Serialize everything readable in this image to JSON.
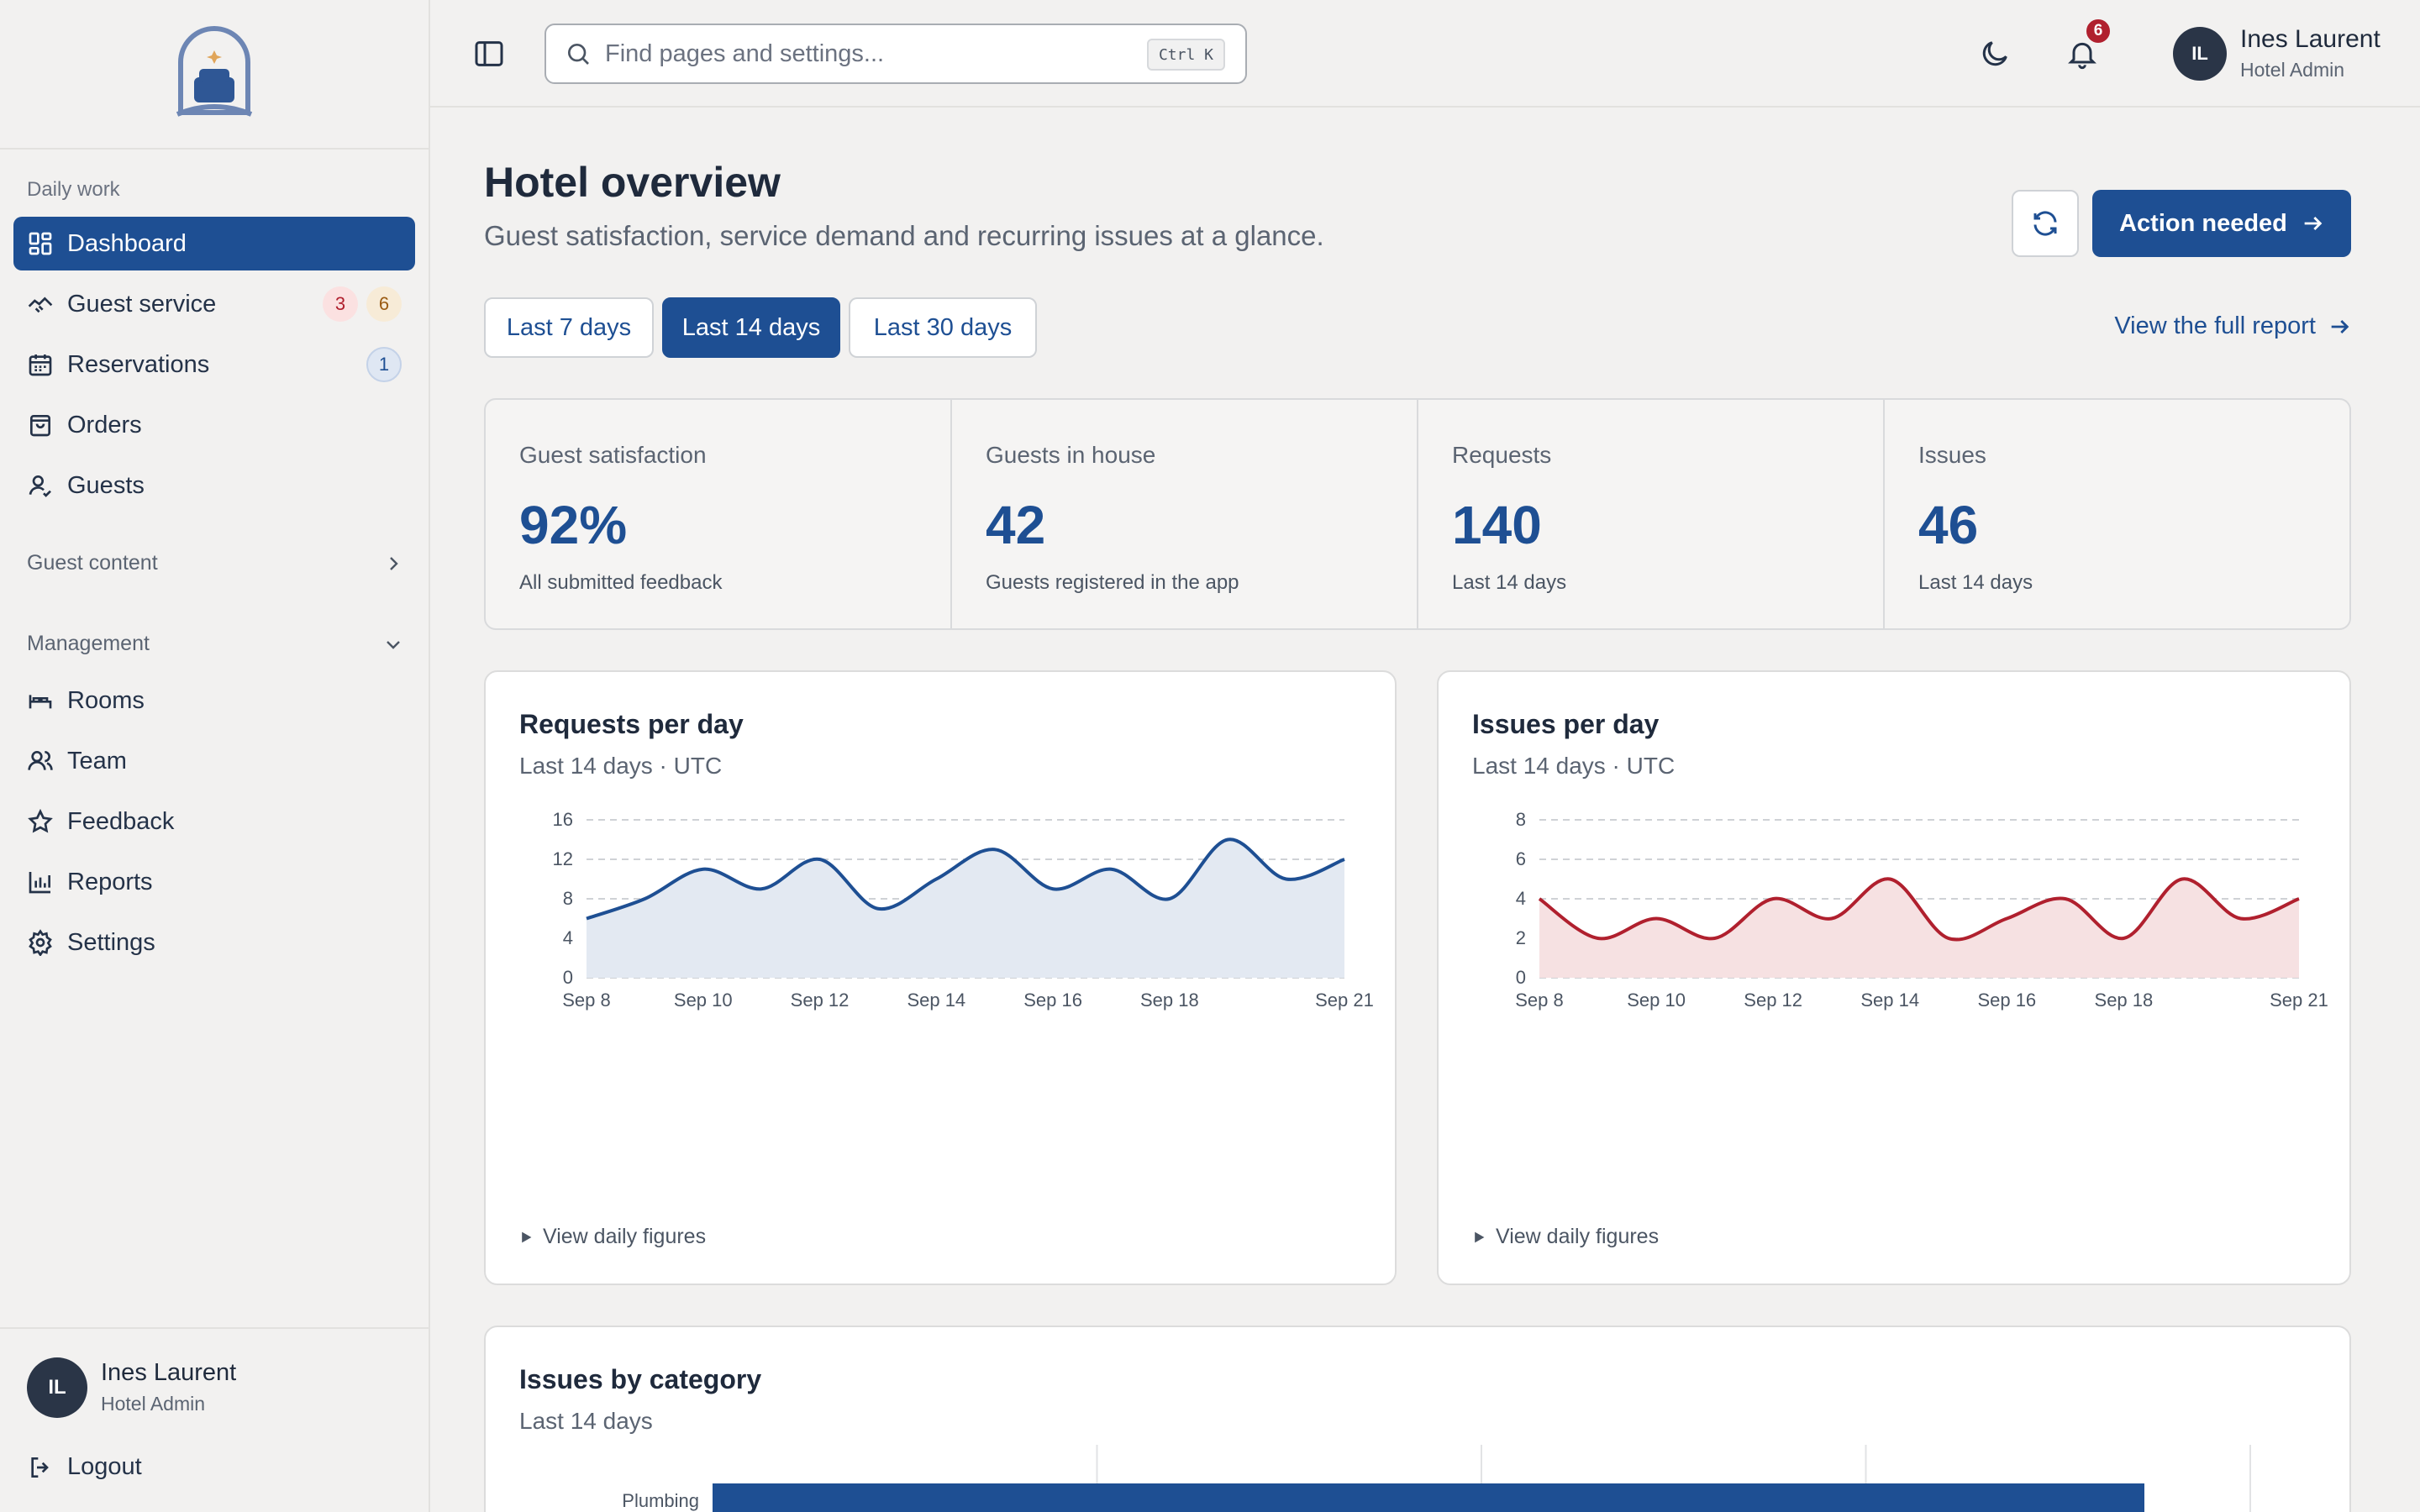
{
  "user": {
    "name": "Ines Laurent",
    "role": "Hotel Admin",
    "initials": "IL"
  },
  "search": {
    "placeholder": "Find pages and settings...",
    "shortcut": "Ctrl K"
  },
  "notifications": {
    "count": "6"
  },
  "sidebar": {
    "daily_label": "Daily work",
    "items": [
      {
        "label": "Dashboard"
      },
      {
        "label": "Guest service",
        "badge_red": "3",
        "badge_amber": "6"
      },
      {
        "label": "Reservations",
        "badge_blue": "1"
      },
      {
        "label": "Orders"
      },
      {
        "label": "Guests"
      }
    ],
    "guest_content_label": "Guest content",
    "management_label": "Management",
    "management_items": [
      {
        "label": "Rooms"
      },
      {
        "label": "Team"
      },
      {
        "label": "Feedback"
      },
      {
        "label": "Reports"
      },
      {
        "label": "Settings"
      }
    ],
    "logout_label": "Logout"
  },
  "page": {
    "title": "Hotel overview",
    "subtitle": "Guest satisfaction, service demand and recurring issues at a glance.",
    "action_label": "Action needed",
    "ranges": [
      "Last 7 days",
      "Last 14 days",
      "Last 30 days"
    ],
    "full_report_label": "View the full report"
  },
  "stats": [
    {
      "label": "Guest satisfaction",
      "value": "92%",
      "note": "All submitted feedback"
    },
    {
      "label": "Guests in house",
      "value": "42",
      "note": "Guests registered in the app"
    },
    {
      "label": "Requests",
      "value": "140",
      "note": "Last 14 days"
    },
    {
      "label": "Issues",
      "value": "46",
      "note": "Last 14 days"
    }
  ],
  "charts": {
    "requests": {
      "title": "Requests per day",
      "subtitle": "Last 14 days · UTC",
      "details_label": "View daily figures"
    },
    "issues": {
      "title": "Issues per day",
      "subtitle": "Last 14 days · UTC",
      "details_label": "View daily figures"
    },
    "categories": {
      "title": "Issues by category",
      "subtitle": "Last 14 days"
    }
  },
  "chart_data": [
    {
      "type": "area",
      "title": "Requests per day",
      "x": [
        "Sep 8",
        "Sep 9",
        "Sep 10",
        "Sep 11",
        "Sep 12",
        "Sep 13",
        "Sep 14",
        "Sep 15",
        "Sep 16",
        "Sep 17",
        "Sep 18",
        "Sep 19",
        "Sep 20",
        "Sep 21"
      ],
      "x_tick_labels": [
        "Sep 8",
        "Sep 10",
        "Sep 12",
        "Sep 14",
        "Sep 16",
        "Sep 18",
        "Sep 21"
      ],
      "values": [
        6,
        8,
        11,
        9,
        12,
        7,
        10,
        13,
        9,
        11,
        8,
        14,
        10,
        12
      ],
      "ylim": [
        0,
        16
      ],
      "yticks": [
        0,
        4,
        8,
        12,
        16
      ],
      "color": "#1e4f93",
      "fill": "#e3e9f2",
      "grid": true
    },
    {
      "type": "area",
      "title": "Issues per day",
      "x": [
        "Sep 8",
        "Sep 9",
        "Sep 10",
        "Sep 11",
        "Sep 12",
        "Sep 13",
        "Sep 14",
        "Sep 15",
        "Sep 16",
        "Sep 17",
        "Sep 18",
        "Sep 19",
        "Sep 20",
        "Sep 21"
      ],
      "x_tick_labels": [
        "Sep 8",
        "Sep 10",
        "Sep 12",
        "Sep 14",
        "Sep 16",
        "Sep 18",
        "Sep 21"
      ],
      "values": [
        4,
        2,
        3,
        2,
        4,
        3,
        5,
        2,
        3,
        4,
        2,
        5,
        3,
        4
      ],
      "ylim": [
        0,
        8
      ],
      "yticks": [
        0,
        2,
        4,
        6,
        8
      ],
      "color": "#b0202e",
      "fill": "#f6e1e2",
      "grid": true
    },
    {
      "type": "bar",
      "title": "Issues by category",
      "categories": [
        "Plumbing"
      ],
      "values": [
        1
      ],
      "color": "#1e4f93"
    }
  ]
}
